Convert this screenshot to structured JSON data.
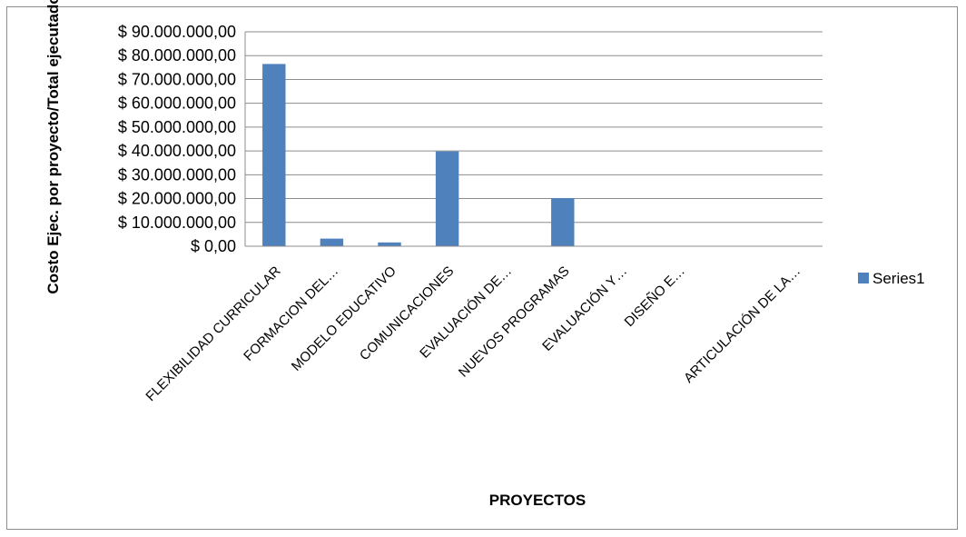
{
  "chart_data": {
    "type": "bar",
    "title": "",
    "xlabel": "PROYECTOS",
    "ylabel": "Costo Ejec. por proyecto/Total ejecutado",
    "ylim": [
      0,
      90000000
    ],
    "yticks": [
      0,
      10000000,
      20000000,
      30000000,
      40000000,
      50000000,
      60000000,
      70000000,
      80000000,
      90000000
    ],
    "ytick_labels": [
      "$ 0,00",
      "$ 10.000.000,00",
      "$ 20.000.000,00",
      "$ 30.000.000,00",
      "$ 40.000.000,00",
      "$ 50.000.000,00",
      "$ 60.000.000,00",
      "$ 70.000.000,00",
      "$ 80.000.000,00",
      "$ 90.000.000,00"
    ],
    "categories": [
      "FLEXIBILIDAD CURRICULAR",
      "FORMACION DEL…",
      "MODELO EDUCATIVO",
      "COMUNICACIONES",
      "EVALUACIÓN DE…",
      "NUEVOS PROGRAMAS",
      "EVALUACIÓN Y…",
      "DISEÑO E…",
      "",
      "ARTICULACIÓN DE LA…"
    ],
    "series": [
      {
        "name": "Series1",
        "values": [
          76500000,
          3200000,
          1600000,
          39800000,
          0,
          20200000,
          0,
          0,
          0,
          0
        ]
      }
    ],
    "grid": true,
    "legend": "right",
    "colors": {
      "bar": "#4f81bd",
      "grid": "#8c8c8c",
      "axis": "#8c8c8c"
    }
  }
}
